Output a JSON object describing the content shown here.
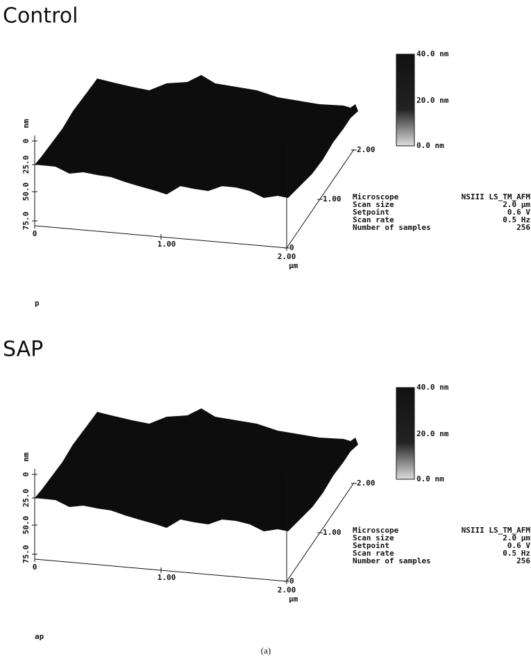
{
  "figure_label": "(a)",
  "panels": [
    {
      "title": "Control",
      "colorbar": [
        "40.0 nm",
        "20.0 nm",
        "0.0 nm"
      ],
      "z_axis": {
        "label": "nm",
        "ticks": [
          "75.0",
          "50.0",
          "25.0",
          "0"
        ]
      },
      "x_axis": {
        "ticks": [
          "0",
          "1.00",
          "2.00"
        ],
        "unit": "µm"
      },
      "y_axis": {
        "ticks": [
          "0",
          "1.00",
          "2.00"
        ]
      },
      "info": [
        [
          "Microscope",
          "NSIII LS_TM_AFM"
        ],
        [
          "Scan size",
          "2.0 µm"
        ],
        [
          "Setpoint",
          "0.6 V"
        ],
        [
          "Scan rate",
          "0.5 Hz"
        ],
        [
          "Number of samples",
          "256"
        ]
      ],
      "file": "p"
    },
    {
      "title": "SAP",
      "colorbar": [
        "40.0 nm",
        "20.0 nm",
        "0.0 nm"
      ],
      "z_axis": {
        "label": "nm",
        "ticks": [
          "75.0",
          "50.0",
          "25.0",
          "0"
        ]
      },
      "x_axis": {
        "ticks": [
          "0",
          "1.00",
          "2.00"
        ],
        "unit": "µm"
      },
      "y_axis": {
        "ticks": [
          "0",
          "1.00",
          "2.00"
        ]
      },
      "info": [
        [
          "Microscope",
          "NSIII LS_TM_AFM"
        ],
        [
          "Scan size",
          "2.0 µm"
        ],
        [
          "Setpoint",
          "0.6 V"
        ],
        [
          "Scan rate",
          "0.5 Hz"
        ],
        [
          "Number of samples",
          "256"
        ]
      ],
      "file": "ap"
    }
  ]
}
